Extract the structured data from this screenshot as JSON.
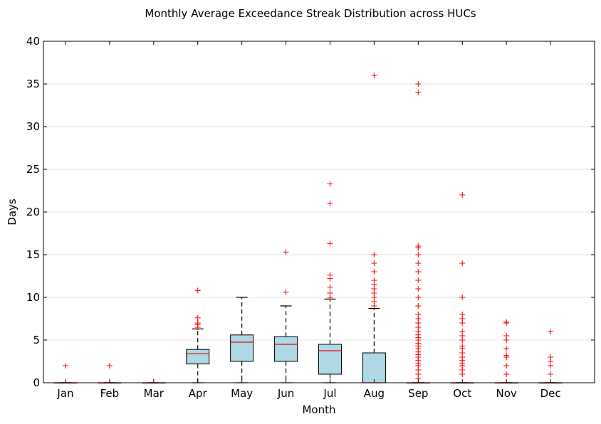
{
  "chart_data": {
    "type": "box",
    "title": "Monthly Average Exceedance Streak Distribution across HUCs",
    "xlabel": "Month",
    "ylabel": "Days",
    "ylim": [
      0,
      40
    ],
    "yticks": [
      0,
      5,
      10,
      15,
      20,
      25,
      30,
      35,
      40
    ],
    "grid": "horizontal",
    "colors": {
      "box_fill": "#add8e6",
      "median": "#ff0000",
      "outlier": "#ff0000",
      "grid": "#e6e6e6"
    },
    "categories": [
      "Jan",
      "Feb",
      "Mar",
      "Apr",
      "May",
      "Jun",
      "Jul",
      "Aug",
      "Sep",
      "Oct",
      "Nov",
      "Dec"
    ],
    "boxes": [
      {
        "label": "Jan",
        "whislo": 0,
        "q1": 0,
        "med": 0,
        "q3": 0,
        "whishi": 0,
        "fliers": [
          2
        ]
      },
      {
        "label": "Feb",
        "whislo": 0,
        "q1": 0,
        "med": 0,
        "q3": 0,
        "whishi": 0,
        "fliers": [
          2
        ]
      },
      {
        "label": "Mar",
        "whislo": 0,
        "q1": 0,
        "med": 0,
        "q3": 0,
        "whishi": 0,
        "fliers": []
      },
      {
        "label": "Apr",
        "whislo": 0,
        "q1": 2.2,
        "med": 3.4,
        "q3": 3.9,
        "whishi": 6.3,
        "fliers": [
          6.5,
          6.8,
          7.0,
          7.6,
          10.8
        ]
      },
      {
        "label": "May",
        "whislo": 0,
        "q1": 2.5,
        "med": 4.75,
        "q3": 5.6,
        "whishi": 10,
        "fliers": []
      },
      {
        "label": "Jun",
        "whislo": 0,
        "q1": 2.5,
        "med": 4.5,
        "q3": 5.4,
        "whishi": 9,
        "fliers": [
          10.6,
          15.3
        ]
      },
      {
        "label": "Jul",
        "whislo": 0,
        "q1": 1.0,
        "med": 3.75,
        "q3": 4.5,
        "whishi": 9.8,
        "fliers": [
          10,
          10.5,
          11.2,
          12.2,
          12.6,
          16.3,
          21,
          23.3
        ]
      },
      {
        "label": "Aug",
        "whislo": 0,
        "q1": 0,
        "med": 0,
        "q3": 3.5,
        "whishi": 8.7,
        "fliers": [
          9,
          9.5,
          10,
          10.5,
          11,
          11.5,
          12,
          13,
          14,
          15,
          36
        ]
      },
      {
        "label": "Sep",
        "whislo": 0,
        "q1": 0,
        "med": 0,
        "q3": 0,
        "whishi": 0,
        "fliers": [
          0.5,
          1,
          1.5,
          2,
          2.3,
          2.6,
          3,
          3.3,
          3.6,
          4,
          4.3,
          4.6,
          5,
          5.3,
          5.6,
          6,
          6.5,
          7,
          7.5,
          8,
          9,
          10,
          11,
          12,
          13,
          14,
          15,
          15.8,
          16,
          34,
          35
        ]
      },
      {
        "label": "Oct",
        "whislo": 0,
        "q1": 0,
        "med": 0,
        "q3": 0,
        "whishi": 0,
        "fliers": [
          1,
          1.5,
          2,
          2.3,
          2.6,
          3,
          3.5,
          4,
          4.3,
          5,
          5.5,
          6,
          7,
          7.5,
          8,
          10,
          14,
          22
        ]
      },
      {
        "label": "Nov",
        "whislo": 0,
        "q1": 0,
        "med": 0,
        "q3": 0,
        "whishi": 0,
        "fliers": [
          1,
          2,
          3,
          3.2,
          4,
          5,
          5.5,
          7,
          7.1
        ]
      },
      {
        "label": "Dec",
        "whislo": 0,
        "q1": 0,
        "med": 0,
        "q3": 0,
        "whishi": 0,
        "fliers": [
          1,
          2,
          2.5,
          3,
          6
        ]
      }
    ]
  }
}
